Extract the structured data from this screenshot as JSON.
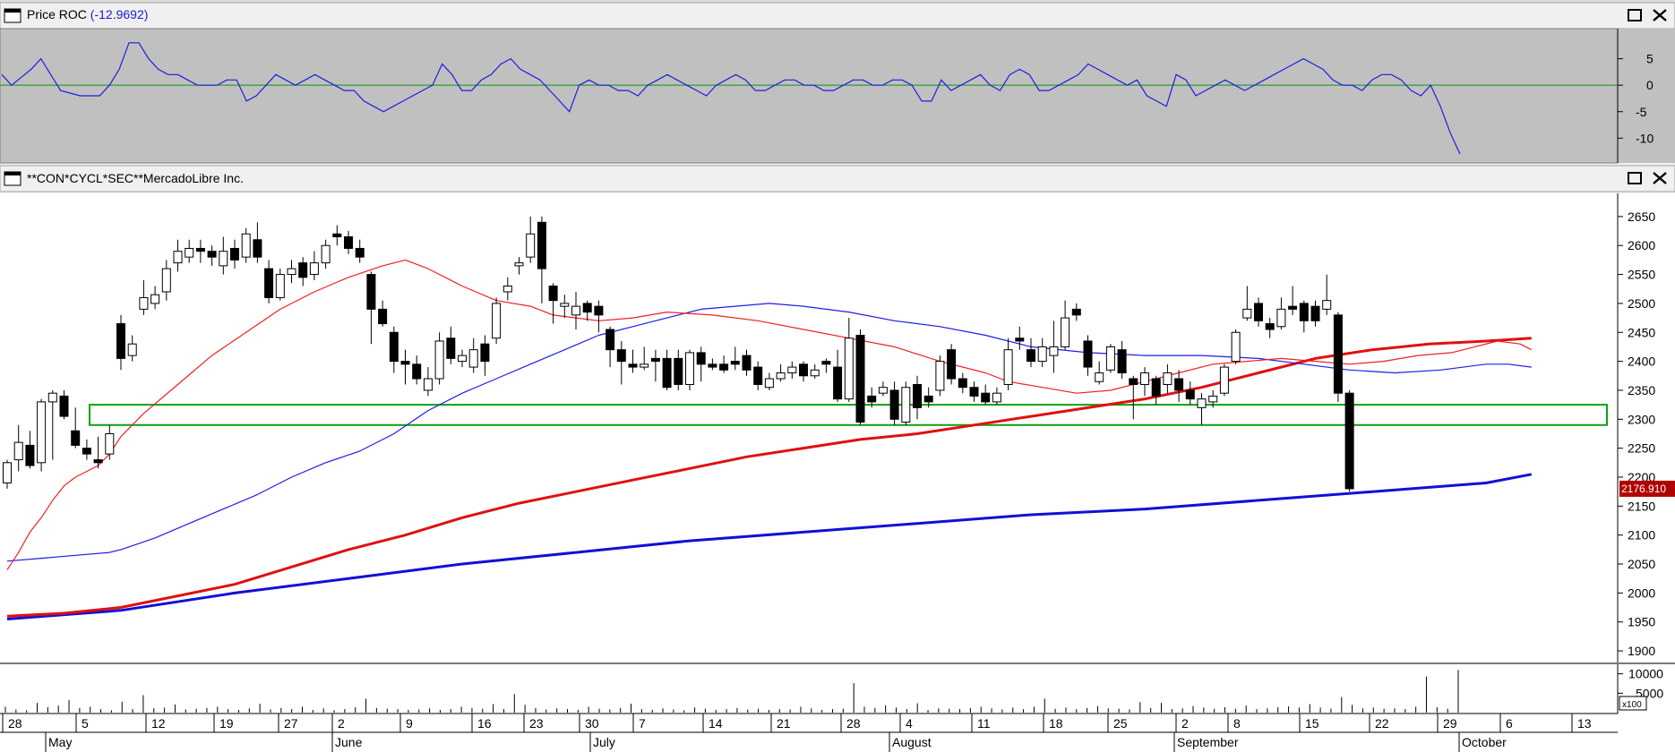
{
  "roc_panel": {
    "title": "Price ROC",
    "value_text": "(-12.9692)",
    "zero_line_color": "#109010",
    "line_color": "#1e1ee0"
  },
  "price_panel": {
    "title": "**CON*CYCL*SEC**MercadoLibre  Inc.",
    "last_price_label": "2176.910"
  },
  "volume_panel": {
    "unit_label": "x100"
  },
  "window_controls": {
    "maximize_icon": "maximize-icon",
    "close_icon": "close-icon"
  },
  "chart_data": {
    "type": "candlestick",
    "x_axis": {
      "day_labels": [
        "28",
        "5",
        "12",
        "19",
        "27",
        "2",
        "9",
        "16",
        "23",
        "30",
        "7",
        "14",
        "21",
        "28",
        "4",
        "11",
        "18",
        "25",
        "2",
        "8",
        "15",
        "22",
        "29",
        "6",
        "13"
      ],
      "months": [
        "May",
        "June",
        "July",
        "August",
        "September",
        "October"
      ]
    },
    "y_axis": {
      "range": [
        1880,
        2690
      ],
      "ticks": [
        1900,
        1950,
        2000,
        2050,
        2100,
        2150,
        2200,
        2250,
        2300,
        2350,
        2400,
        2450,
        2500,
        2550,
        2600,
        2650
      ]
    },
    "support_zone": {
      "low": 2290,
      "high": 2325,
      "color": "#10a010"
    },
    "candles": [
      [
        2190,
        2225,
        2180,
        2230
      ],
      [
        2230,
        2260,
        2210,
        2290
      ],
      [
        2255,
        2220,
        2215,
        2280
      ],
      [
        2225,
        2330,
        2210,
        2335
      ],
      [
        2330,
        2345,
        2230,
        2350
      ],
      [
        2340,
        2305,
        2300,
        2350
      ],
      [
        2280,
        2255,
        2250,
        2320
      ],
      [
        2250,
        2240,
        2230,
        2265
      ],
      [
        2230,
        2225,
        2215,
        2270
      ],
      [
        2240,
        2275,
        2230,
        2290
      ],
      [
        2465,
        2405,
        2385,
        2480
      ],
      [
        2410,
        2430,
        2400,
        2445
      ],
      [
        2490,
        2510,
        2480,
        2540
      ],
      [
        2500,
        2515,
        2490,
        2530
      ],
      [
        2520,
        2560,
        2505,
        2575
      ],
      [
        2570,
        2590,
        2555,
        2610
      ],
      [
        2580,
        2595,
        2570,
        2610
      ],
      [
        2595,
        2590,
        2570,
        2610
      ],
      [
        2590,
        2580,
        2565,
        2600
      ],
      [
        2565,
        2590,
        2550,
        2615
      ],
      [
        2595,
        2575,
        2560,
        2610
      ],
      [
        2580,
        2620,
        2570,
        2630
      ],
      [
        2610,
        2580,
        2570,
        2640
      ],
      [
        2560,
        2510,
        2500,
        2575
      ],
      [
        2510,
        2550,
        2505,
        2560
      ],
      [
        2550,
        2560,
        2535,
        2575
      ],
      [
        2570,
        2545,
        2530,
        2580
      ],
      [
        2550,
        2570,
        2540,
        2590
      ],
      [
        2570,
        2600,
        2560,
        2610
      ],
      [
        2620,
        2615,
        2600,
        2635
      ],
      [
        2615,
        2595,
        2585,
        2625
      ],
      [
        2595,
        2580,
        2570,
        2610
      ],
      [
        2550,
        2490,
        2430,
        2555
      ],
      [
        2490,
        2465,
        2460,
        2505
      ],
      [
        2450,
        2400,
        2380,
        2460
      ],
      [
        2400,
        2395,
        2360,
        2420
      ],
      [
        2395,
        2370,
        2360,
        2410
      ],
      [
        2350,
        2370,
        2340,
        2390
      ],
      [
        2370,
        2435,
        2360,
        2450
      ],
      [
        2440,
        2405,
        2395,
        2460
      ],
      [
        2400,
        2410,
        2390,
        2420
      ],
      [
        2390,
        2420,
        2380,
        2440
      ],
      [
        2430,
        2400,
        2375,
        2445
      ],
      [
        2440,
        2500,
        2430,
        2510
      ],
      [
        2520,
        2530,
        2505,
        2545
      ],
      [
        2565,
        2570,
        2550,
        2580
      ],
      [
        2580,
        2620,
        2570,
        2650
      ],
      [
        2640,
        2560,
        2500,
        2650
      ],
      [
        2530,
        2505,
        2465,
        2535
      ],
      [
        2495,
        2500,
        2475,
        2515
      ],
      [
        2480,
        2495,
        2455,
        2520
      ],
      [
        2500,
        2485,
        2470,
        2505
      ],
      [
        2495,
        2480,
        2450,
        2505
      ],
      [
        2455,
        2420,
        2390,
        2460
      ],
      [
        2420,
        2400,
        2360,
        2435
      ],
      [
        2395,
        2390,
        2380,
        2420
      ],
      [
        2390,
        2395,
        2385,
        2425
      ],
      [
        2405,
        2400,
        2365,
        2420
      ],
      [
        2405,
        2355,
        2350,
        2420
      ],
      [
        2405,
        2360,
        2350,
        2420
      ],
      [
        2360,
        2415,
        2350,
        2420
      ],
      [
        2415,
        2395,
        2365,
        2425
      ],
      [
        2395,
        2390,
        2385,
        2405
      ],
      [
        2395,
        2385,
        2380,
        2410
      ],
      [
        2400,
        2395,
        2385,
        2425
      ],
      [
        2410,
        2385,
        2375,
        2420
      ],
      [
        2390,
        2360,
        2350,
        2400
      ],
      [
        2355,
        2370,
        2350,
        2380
      ],
      [
        2370,
        2380,
        2365,
        2395
      ],
      [
        2380,
        2390,
        2370,
        2400
      ],
      [
        2395,
        2375,
        2365,
        2400
      ],
      [
        2375,
        2385,
        2370,
        2395
      ],
      [
        2400,
        2395,
        2380,
        2405
      ],
      [
        2390,
        2335,
        2330,
        2420
      ],
      [
        2335,
        2440,
        2330,
        2475
      ],
      [
        2445,
        2295,
        2290,
        2455
      ],
      [
        2340,
        2330,
        2320,
        2355
      ],
      [
        2345,
        2355,
        2340,
        2365
      ],
      [
        2350,
        2300,
        2290,
        2365
      ],
      [
        2295,
        2355,
        2290,
        2365
      ],
      [
        2360,
        2320,
        2300,
        2375
      ],
      [
        2340,
        2330,
        2320,
        2355
      ],
      [
        2350,
        2400,
        2340,
        2410
      ],
      [
        2420,
        2370,
        2360,
        2430
      ],
      [
        2370,
        2355,
        2345,
        2380
      ],
      [
        2355,
        2340,
        2330,
        2365
      ],
      [
        2345,
        2330,
        2325,
        2360
      ],
      [
        2330,
        2345,
        2325,
        2355
      ],
      [
        2360,
        2420,
        2350,
        2440
      ],
      [
        2440,
        2435,
        2420,
        2460
      ],
      [
        2420,
        2400,
        2390,
        2440
      ],
      [
        2400,
        2425,
        2390,
        2440
      ],
      [
        2410,
        2425,
        2380,
        2470
      ],
      [
        2425,
        2475,
        2420,
        2505
      ],
      [
        2490,
        2480,
        2470,
        2500
      ],
      [
        2435,
        2390,
        2375,
        2445
      ],
      [
        2365,
        2380,
        2360,
        2400
      ],
      [
        2385,
        2425,
        2380,
        2430
      ],
      [
        2420,
        2380,
        2370,
        2435
      ],
      [
        2370,
        2360,
        2300,
        2375
      ],
      [
        2360,
        2380,
        2340,
        2390
      ],
      [
        2370,
        2340,
        2325,
        2375
      ],
      [
        2360,
        2380,
        2345,
        2395
      ],
      [
        2370,
        2350,
        2330,
        2385
      ],
      [
        2350,
        2335,
        2325,
        2365
      ],
      [
        2320,
        2335,
        2290,
        2345
      ],
      [
        2330,
        2340,
        2320,
        2350
      ],
      [
        2345,
        2390,
        2340,
        2395
      ],
      [
        2400,
        2450,
        2395,
        2455
      ],
      [
        2475,
        2490,
        2470,
        2530
      ],
      [
        2500,
        2470,
        2460,
        2510
      ],
      [
        2465,
        2455,
        2440,
        2475
      ],
      [
        2460,
        2490,
        2455,
        2510
      ],
      [
        2495,
        2490,
        2480,
        2530
      ],
      [
        2500,
        2470,
        2450,
        2505
      ],
      [
        2495,
        2470,
        2460,
        2505
      ],
      [
        2490,
        2505,
        2480,
        2550
      ],
      [
        2480,
        2345,
        2330,
        2485
      ],
      [
        2345,
        2180,
        2175,
        2350
      ]
    ],
    "ma_red_thin": [
      [
        0,
        2040
      ],
      [
        1,
        2070
      ],
      [
        2,
        2105
      ],
      [
        3,
        2130
      ],
      [
        4,
        2160
      ],
      [
        5,
        2185
      ],
      [
        6,
        2200
      ],
      [
        7,
        2210
      ],
      [
        8,
        2220
      ],
      [
        9,
        2240
      ],
      [
        10,
        2270
      ],
      [
        12,
        2310
      ],
      [
        15,
        2360
      ],
      [
        18,
        2410
      ],
      [
        21,
        2450
      ],
      [
        24,
        2490
      ],
      [
        27,
        2520
      ],
      [
        30,
        2545
      ],
      [
        33,
        2565
      ],
      [
        35,
        2575
      ],
      [
        37,
        2560
      ],
      [
        40,
        2530
      ],
      [
        43,
        2505
      ],
      [
        46,
        2495
      ],
      [
        48,
        2480
      ],
      [
        50,
        2475
      ],
      [
        52,
        2470
      ],
      [
        55,
        2475
      ],
      [
        58,
        2485
      ],
      [
        62,
        2480
      ],
      [
        66,
        2470
      ],
      [
        70,
        2455
      ],
      [
        74,
        2440
      ],
      [
        78,
        2425
      ],
      [
        82,
        2400
      ],
      [
        86,
        2380
      ],
      [
        88,
        2365
      ],
      [
        91,
        2355
      ],
      [
        94,
        2345
      ],
      [
        97,
        2350
      ],
      [
        100,
        2365
      ],
      [
        103,
        2380
      ],
      [
        106,
        2395
      ],
      [
        109,
        2400
      ],
      [
        112,
        2405
      ],
      [
        115,
        2400
      ],
      [
        118,
        2395
      ],
      [
        121,
        2400
      ],
      [
        124,
        2410
      ],
      [
        127,
        2415
      ],
      [
        129,
        2425
      ],
      [
        131,
        2435
      ],
      [
        133,
        2430
      ],
      [
        134,
        2420
      ]
    ],
    "ma_blue_thin": [
      [
        0,
        2055
      ],
      [
        3,
        2060
      ],
      [
        6,
        2065
      ],
      [
        9,
        2070
      ],
      [
        10,
        2075
      ],
      [
        13,
        2095
      ],
      [
        16,
        2120
      ],
      [
        19,
        2145
      ],
      [
        22,
        2170
      ],
      [
        25,
        2200
      ],
      [
        28,
        2225
      ],
      [
        31,
        2245
      ],
      [
        34,
        2275
      ],
      [
        37,
        2315
      ],
      [
        40,
        2345
      ],
      [
        43,
        2370
      ],
      [
        46,
        2395
      ],
      [
        49,
        2420
      ],
      [
        52,
        2445
      ],
      [
        55,
        2460
      ],
      [
        58,
        2475
      ],
      [
        61,
        2490
      ],
      [
        64,
        2495
      ],
      [
        67,
        2500
      ],
      [
        70,
        2495
      ],
      [
        74,
        2485
      ],
      [
        78,
        2470
      ],
      [
        82,
        2460
      ],
      [
        86,
        2445
      ],
      [
        90,
        2425
      ],
      [
        95,
        2415
      ],
      [
        100,
        2410
      ],
      [
        105,
        2410
      ],
      [
        110,
        2405
      ],
      [
        114,
        2395
      ],
      [
        118,
        2385
      ],
      [
        122,
        2380
      ],
      [
        126,
        2385
      ],
      [
        130,
        2395
      ],
      [
        132,
        2395
      ],
      [
        134,
        2390
      ]
    ],
    "ma_red_thick": [
      [
        0,
        1960
      ],
      [
        5,
        1965
      ],
      [
        10,
        1975
      ],
      [
        15,
        1995
      ],
      [
        20,
        2015
      ],
      [
        25,
        2045
      ],
      [
        30,
        2075
      ],
      [
        35,
        2100
      ],
      [
        40,
        2130
      ],
      [
        45,
        2155
      ],
      [
        50,
        2175
      ],
      [
        55,
        2195
      ],
      [
        60,
        2215
      ],
      [
        65,
        2235
      ],
      [
        70,
        2250
      ],
      [
        75,
        2265
      ],
      [
        80,
        2275
      ],
      [
        85,
        2290
      ],
      [
        90,
        2305
      ],
      [
        95,
        2320
      ],
      [
        100,
        2335
      ],
      [
        105,
        2355
      ],
      [
        110,
        2380
      ],
      [
        115,
        2405
      ],
      [
        120,
        2420
      ],
      [
        125,
        2430
      ],
      [
        130,
        2435
      ],
      [
        134,
        2440
      ]
    ],
    "ma_blue_thick": [
      [
        0,
        1955
      ],
      [
        10,
        1970
      ],
      [
        20,
        2000
      ],
      [
        30,
        2025
      ],
      [
        40,
        2050
      ],
      [
        50,
        2070
      ],
      [
        60,
        2090
      ],
      [
        70,
        2105
      ],
      [
        80,
        2120
      ],
      [
        90,
        2135
      ],
      [
        100,
        2145
      ],
      [
        110,
        2160
      ],
      [
        120,
        2175
      ],
      [
        130,
        2190
      ],
      [
        134,
        2205
      ]
    ],
    "roc": {
      "y_range": [
        -14,
        10
      ],
      "ticks": [
        5,
        0,
        -5,
        -10
      ],
      "values": [
        2,
        0,
        1.5,
        3,
        5,
        2,
        -1,
        -1.5,
        -2,
        -2,
        -2,
        0,
        3,
        8,
        8,
        5,
        3,
        2,
        2,
        1,
        0,
        0,
        0,
        1,
        1,
        -3,
        -2,
        0,
        2,
        1,
        0,
        1,
        2,
        1,
        0,
        -1,
        -1,
        -3,
        -4,
        -5,
        -4,
        -3,
        -2,
        -1,
        0,
        4,
        2,
        -1,
        -1,
        1,
        2,
        4,
        5,
        3,
        2,
        1,
        -1,
        -3,
        -5,
        0,
        1,
        0,
        0,
        -1,
        -1,
        -2,
        0,
        1,
        2,
        1,
        0,
        -1,
        -2,
        0,
        1,
        2,
        1,
        -1,
        -1,
        0,
        1,
        1,
        0,
        0,
        -1,
        -1,
        0,
        1,
        1,
        0,
        0,
        1,
        1,
        0,
        -3,
        -3,
        1,
        -1,
        0,
        1,
        2,
        0,
        -1,
        2,
        3,
        2,
        -1,
        -1,
        0,
        1,
        2,
        4,
        3,
        2,
        1,
        0,
        1,
        -2,
        -3,
        -4,
        2,
        1,
        -2,
        -1,
        0,
        1,
        0,
        -1,
        0,
        1,
        2,
        3,
        4,
        5,
        4,
        3,
        1,
        0,
        0,
        -1,
        1,
        2,
        2,
        1,
        -1,
        -2,
        0,
        -4,
        -9,
        -13
      ]
    },
    "volume": {
      "y_range": [
        0,
        12000
      ],
      "ticks": [
        10000,
        5000
      ],
      "values": [
        1500,
        800,
        600,
        2500,
        1400,
        1800,
        3200,
        1200,
        1500,
        900,
        600,
        2800,
        900,
        4500,
        1100,
        1300,
        2100,
        800,
        1000,
        1200,
        1500,
        900,
        700,
        1100,
        2300,
        800,
        1200,
        900,
        1500,
        700,
        1100,
        600,
        900,
        1400,
        3600,
        1200,
        1000,
        900,
        700,
        800,
        1100,
        700,
        900,
        1500,
        1200,
        1000,
        2200,
        900,
        4800,
        2000,
        1200,
        800,
        1100,
        900,
        700,
        1500,
        1000,
        800,
        1200,
        2300,
        900,
        700,
        1100,
        800,
        600,
        1300,
        1000,
        700,
        900,
        1200,
        800,
        1000,
        700,
        900,
        800,
        1500,
        1100,
        700,
        900,
        1000,
        7600,
        1500,
        1200,
        1900,
        1300,
        900,
        2400,
        700,
        1100,
        1000,
        900,
        1200,
        1500,
        1100,
        800,
        1300,
        900,
        1500,
        3600,
        1000,
        1300,
        900,
        1200,
        1700,
        1100,
        1000,
        800,
        2700,
        1200,
        2500,
        900,
        1100,
        1700,
        1300,
        1000,
        1400,
        1000,
        1800,
        900,
        1100,
        1400,
        1600,
        1300,
        2200,
        1300,
        1000,
        4000,
        2000,
        1100,
        1300,
        1000,
        1100,
        900,
        1500,
        9300,
        1400,
        1000,
        11000
      ]
    }
  }
}
